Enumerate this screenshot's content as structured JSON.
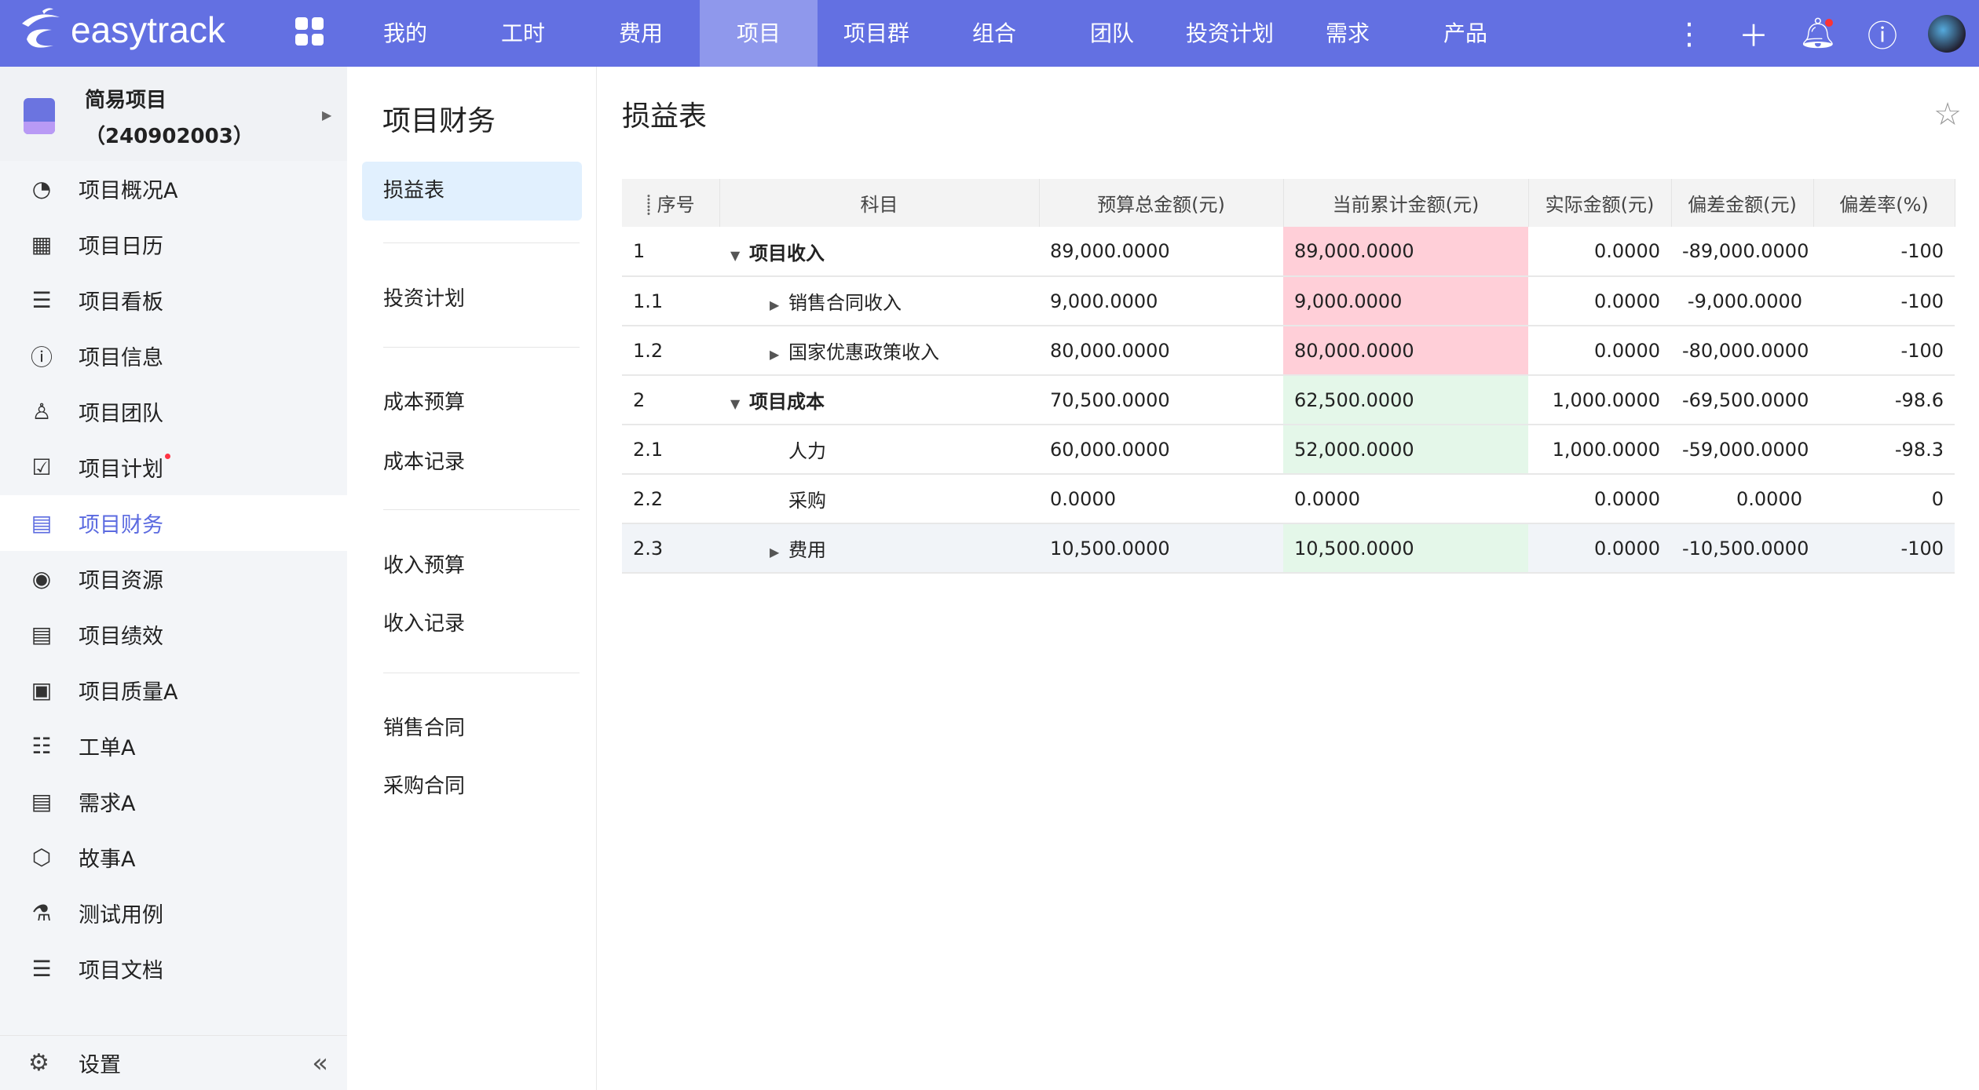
{
  "brand": "easytrack",
  "nav": [
    "我的",
    "工时",
    "费用",
    "项目",
    "项目群",
    "组合",
    "团队",
    "投资计划",
    "需求",
    "产品"
  ],
  "nav_active": 3,
  "top_icons": [
    "more-icon",
    "plus-icon",
    "bell-icon",
    "help-icon",
    "avatar"
  ],
  "project": {
    "title": "简易项目（240902003）"
  },
  "sidebar": [
    {
      "label": "项目概况A",
      "icon": "pie-chart-icon",
      "glyph": "◔"
    },
    {
      "label": "项目日历",
      "icon": "calendar-icon",
      "glyph": "▦"
    },
    {
      "label": "项目看板",
      "icon": "board-icon",
      "glyph": "☰"
    },
    {
      "label": "项目信息",
      "icon": "info-icon",
      "glyph": "ⓘ"
    },
    {
      "label": "项目团队",
      "icon": "team-icon",
      "glyph": "♙"
    },
    {
      "label": "项目计划",
      "icon": "plan-icon",
      "glyph": "☑"
    },
    {
      "label": "项目财务",
      "icon": "finance-icon",
      "glyph": "▤"
    },
    {
      "label": "项目资源",
      "icon": "resource-icon",
      "glyph": "◉"
    },
    {
      "label": "项目绩效",
      "icon": "performance-icon",
      "glyph": "▤"
    },
    {
      "label": "项目质量A",
      "icon": "quality-icon",
      "glyph": "▣"
    },
    {
      "label": "工单A",
      "icon": "list-icon",
      "glyph": "☷"
    },
    {
      "label": "需求A",
      "icon": "requirement-icon",
      "glyph": "▤"
    },
    {
      "label": "故事A",
      "icon": "cube-icon",
      "glyph": "⬡"
    },
    {
      "label": "测试用例",
      "icon": "flask-icon",
      "glyph": "⚗"
    },
    {
      "label": "项目文档",
      "icon": "document-icon",
      "glyph": "☰"
    }
  ],
  "sidebar_active": 6,
  "settings_label": "设置",
  "subnav": {
    "title": "项目财务",
    "active": "损益表",
    "items": [
      "投资计划",
      "成本预算",
      "成本记录",
      "收入预算",
      "收入记录",
      "销售合同",
      "采购合同"
    ]
  },
  "main": {
    "title": "损益表"
  },
  "table": {
    "headers": [
      "序号",
      "科目",
      "预算总金额(元)",
      "当前累计金额(元)",
      "实际金额(元)",
      "偏差金额(元)",
      "偏差率(%)"
    ],
    "rows": [
      {
        "no": "1",
        "name": "项目收入",
        "level": 0,
        "toggle": "expanded",
        "bold": true,
        "budget": "89,000.0000",
        "current": "89,000.0000",
        "actual": "0.0000",
        "dev": "-89,000.0000",
        "rate": "-100",
        "tone": "pink"
      },
      {
        "no": "1.1",
        "name": "销售合同收入",
        "level": 1,
        "toggle": "collapsed",
        "budget": "9,000.0000",
        "current": "9,000.0000",
        "actual": "0.0000",
        "dev": "-9,000.0000",
        "rate": "-100",
        "tone": "pink"
      },
      {
        "no": "1.2",
        "name": "国家优惠政策收入",
        "level": 1,
        "toggle": "collapsed",
        "budget": "80,000.0000",
        "current": "80,000.0000",
        "actual": "0.0000",
        "dev": "-80,000.0000",
        "rate": "-100",
        "tone": "pink"
      },
      {
        "no": "2",
        "name": "项目成本",
        "level": 0,
        "toggle": "expanded",
        "bold": true,
        "budget": "70,500.0000",
        "current": "62,500.0000",
        "actual": "1,000.0000",
        "dev": "-69,500.0000",
        "rate": "-98.6",
        "tone": "green"
      },
      {
        "no": "2.1",
        "name": "人力",
        "level": 1,
        "toggle": "none",
        "budget": "60,000.0000",
        "current": "52,000.0000",
        "actual": "1,000.0000",
        "dev": "-59,000.0000",
        "rate": "-98.3",
        "tone": "green"
      },
      {
        "no": "2.2",
        "name": "采购",
        "level": 1,
        "toggle": "none",
        "budget": "0.0000",
        "current": "0.0000",
        "actual": "0.0000",
        "dev": "0.0000",
        "rate": "0",
        "tone": ""
      },
      {
        "no": "2.3",
        "name": "费用",
        "level": 1,
        "toggle": "collapsed",
        "budget": "10,500.0000",
        "current": "10,500.0000",
        "actual": "0.0000",
        "dev": "-10,500.0000",
        "rate": "-100",
        "tone": "green",
        "highlight": true
      }
    ]
  },
  "colors": {
    "topbar": "#6370e2",
    "active_nav": "#8f98ec",
    "accent": "#5b6ae0",
    "over": "#ffcfd8",
    "under": "#e4f7e9"
  }
}
